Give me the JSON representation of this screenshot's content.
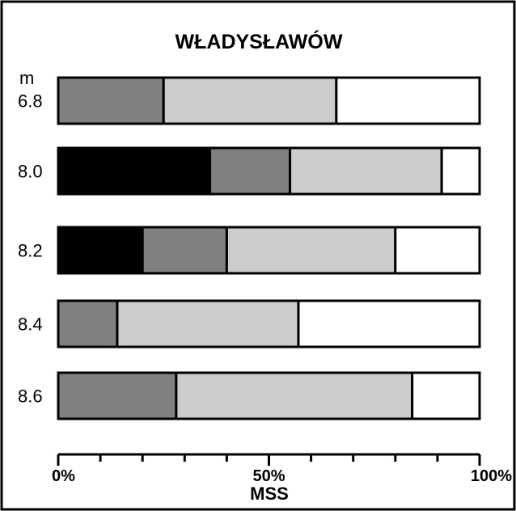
{
  "chart_data": {
    "type": "bar",
    "orientation": "horizontal",
    "stacked": true,
    "title": "WŁADYSŁAWÓW",
    "ylabel": "m",
    "xlabel": "MSS",
    "categories": [
      "6.8",
      "8.0",
      "8.2",
      "8.4",
      "8.6"
    ],
    "series": [
      {
        "color": "#000000",
        "values": [
          0,
          36,
          20,
          0,
          0
        ]
      },
      {
        "color": "#808080",
        "values": [
          25,
          19,
          20,
          14,
          28
        ]
      },
      {
        "color": "#cccccc",
        "values": [
          41,
          36,
          40,
          43,
          56
        ]
      },
      {
        "color": "#ffffff",
        "values": [
          34,
          9,
          20,
          43,
          16
        ]
      }
    ],
    "xlim": [
      0,
      100
    ],
    "xticks": [
      "0%",
      "50%",
      "100%"
    ],
    "minor_tick_step": 10,
    "grid": false,
    "legend": "none"
  }
}
